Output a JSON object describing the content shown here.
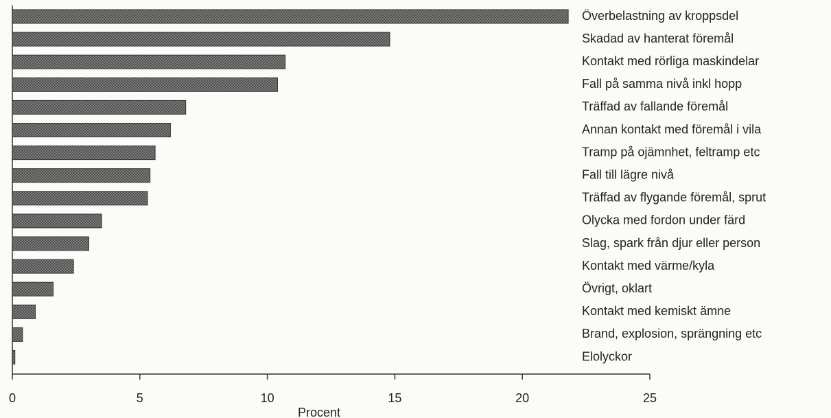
{
  "chart_data": {
    "type": "hbar",
    "categories": [
      "Överbelastning av kroppsdel",
      "Skadad av hanterat föremål",
      "Kontakt med rörliga maskindelar",
      "Fall på samma nivå inkl hopp",
      "Träffad av fallande föremål",
      "Annan kontakt med föremål i vila",
      "Tramp på ojämnhet, feltramp etc",
      "Fall till lägre nivå",
      "Träffad av flygande föremål, sprut",
      "Olycka med fordon under färd",
      "Slag, spark från djur eller person",
      "Kontakt med värme/kyla",
      "Övrigt, oklart",
      "Kontakt med kemiskt ämne",
      "Brand, explosion, sprängning etc",
      "Elolyckor"
    ],
    "values": [
      21.8,
      14.8,
      10.7,
      10.4,
      6.8,
      6.2,
      5.6,
      5.4,
      5.3,
      3.5,
      3.0,
      2.4,
      1.6,
      0.9,
      0.4,
      0.1
    ],
    "color": "#8a8a8a",
    "xlabel": "Procent",
    "xlim": [
      0,
      25
    ],
    "xticks": [
      0,
      5,
      10,
      15,
      20,
      25
    ]
  }
}
